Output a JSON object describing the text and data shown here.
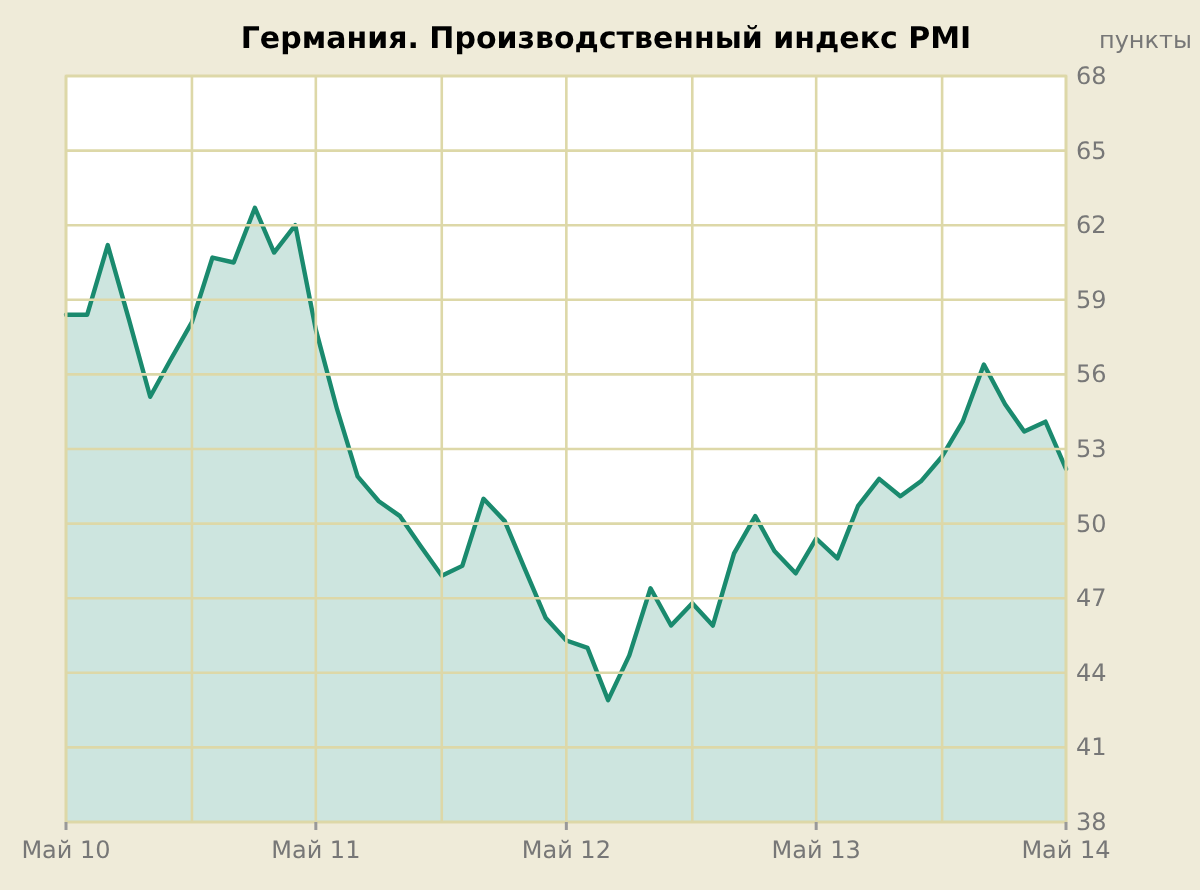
{
  "chart_data": {
    "type": "area",
    "title": "Германия. Производственный индекс PMI",
    "ylabel": "пункты",
    "x": [
      "2010-05",
      "2010-06",
      "2010-07",
      "2010-08",
      "2010-09",
      "2010-10",
      "2010-11",
      "2010-12",
      "2011-01",
      "2011-02",
      "2011-03",
      "2011-04",
      "2011-05",
      "2011-06",
      "2011-07",
      "2011-08",
      "2011-09",
      "2011-10",
      "2011-11",
      "2011-12",
      "2012-01",
      "2012-02",
      "2012-03",
      "2012-04",
      "2012-05",
      "2012-06",
      "2012-07",
      "2012-08",
      "2012-09",
      "2012-10",
      "2012-11",
      "2012-12",
      "2013-01",
      "2013-02",
      "2013-03",
      "2013-04",
      "2013-05",
      "2013-06",
      "2013-07",
      "2013-08",
      "2013-09",
      "2013-10",
      "2013-11",
      "2013-12",
      "2014-01",
      "2014-02",
      "2014-03",
      "2014-04",
      "2014-05"
    ],
    "series": [
      {
        "color": "#1a8a6e",
        "values": [
          58.4,
          58.4,
          61.2,
          58.2,
          55.1,
          56.6,
          58.1,
          60.7,
          60.5,
          62.7,
          60.9,
          62.0,
          57.8,
          54.6,
          51.9,
          50.9,
          50.3,
          49.1,
          47.9,
          48.3,
          51.0,
          50.1,
          48.2,
          46.2,
          45.3,
          45.0,
          42.9,
          44.7,
          47.4,
          45.9,
          46.8,
          45.9,
          48.8,
          50.3,
          48.9,
          48.0,
          49.4,
          48.6,
          50.7,
          51.8,
          51.1,
          51.7,
          52.7,
          54.1,
          56.4,
          54.8,
          53.7,
          54.1,
          52.2
        ]
      }
    ],
    "xlim": [
      "2010-05",
      "2014-05"
    ],
    "xticks": [
      {
        "value": "2010-05",
        "label": "Май 10"
      },
      {
        "value": "2010-11",
        "label": null
      },
      {
        "value": "2011-05",
        "label": "Май 11"
      },
      {
        "value": "2011-11",
        "label": null
      },
      {
        "value": "2012-05",
        "label": "Май 12"
      },
      {
        "value": "2012-11",
        "label": null
      },
      {
        "value": "2013-05",
        "label": "Май 13"
      },
      {
        "value": "2013-11",
        "label": null
      },
      {
        "value": "2014-05",
        "label": "Май 14"
      }
    ],
    "ylim": [
      38,
      68
    ],
    "yticks": [
      38,
      41,
      44,
      47,
      50,
      53,
      56,
      59,
      62,
      65,
      68
    ],
    "grid": true
  }
}
